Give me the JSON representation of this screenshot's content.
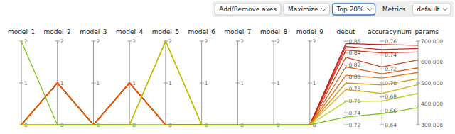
{
  "chart_data": {
    "type": "parallel",
    "annotations": [
      "Add/Remove axes",
      "Maximize",
      "Top 20%",
      "Metrics",
      "default"
    ],
    "axes": [
      {
        "label": "model_1",
        "range": [
          0,
          2
        ],
        "ticks": [
          0,
          1,
          2
        ]
      },
      {
        "label": "model_2",
        "range": [
          0,
          2
        ],
        "ticks": [
          0,
          1,
          2
        ]
      },
      {
        "label": "model_3",
        "range": [
          0,
          2
        ],
        "ticks": [
          0,
          1,
          2
        ]
      },
      {
        "label": "model_4",
        "range": [
          0,
          2
        ],
        "ticks": [
          0,
          1,
          2
        ]
      },
      {
        "label": "model_5",
        "range": [
          0,
          2
        ],
        "ticks": [
          0,
          1,
          2
        ]
      },
      {
        "label": "model_6",
        "range": [
          0,
          2
        ],
        "ticks": [
          0,
          1,
          2
        ]
      },
      {
        "label": "model_7",
        "range": [
          0,
          2
        ],
        "ticks": [
          0,
          1,
          2
        ]
      },
      {
        "label": "model_8",
        "range": [
          0,
          2
        ],
        "ticks": [
          0,
          1,
          2
        ]
      },
      {
        "label": "model_9",
        "range": [
          0,
          2
        ],
        "ticks": [
          0,
          1,
          2
        ]
      },
      {
        "label": "debut",
        "range": [
          0.72,
          0.86
        ],
        "ticks": [
          0.72,
          0.74,
          0.76,
          0.78,
          {
            "value": 0.8,
            "label": "0.80"
          },
          0.82,
          0.84,
          0.86
        ]
      },
      {
        "label": "accuracy",
        "range": [
          0.64,
          0.76
        ],
        "ticks": [
          0.64,
          0.66,
          0.68,
          {
            "value": 0.7,
            "label": "0.70"
          },
          0.72,
          0.74,
          0.76
        ]
      },
      {
        "label": "num_params",
        "range": [
          300000,
          700000
        ],
        "ticks": [
          {
            "value": 300000,
            "label": "300,000"
          },
          {
            "value": 400000,
            "label": "400,000"
          },
          {
            "value": 500000,
            "label": "500,000"
          },
          {
            "value": 600000,
            "label": "600,000"
          },
          {
            "value": 700000,
            "label": "700,000"
          }
        ]
      }
    ],
    "series": [
      {
        "color": "#bb0000",
        "values": [
          0,
          1,
          0,
          1,
          0,
          0,
          0,
          0,
          0,
          0.856,
          0.755,
          680000
        ]
      },
      {
        "color": "#cc1100",
        "values": [
          0,
          1,
          0,
          1,
          0,
          0,
          0,
          0,
          0,
          0.851,
          0.748,
          665000
        ]
      },
      {
        "color": "#cc2200",
        "values": [
          0,
          1,
          0,
          1,
          0,
          0,
          0,
          0,
          0,
          0.845,
          0.743,
          648000
        ]
      },
      {
        "color": "#cc3300",
        "values": [
          0,
          1,
          0,
          1,
          0,
          0,
          0,
          0,
          0,
          0.833,
          0.723,
          610000
        ]
      },
      {
        "color": "#dd5500",
        "values": [
          0,
          1,
          0,
          1,
          0,
          0,
          0,
          0,
          0,
          0.817,
          0.713,
          572000
        ]
      },
      {
        "color": "#e06500",
        "values": [
          0,
          1,
          0,
          1,
          0,
          0,
          0,
          0,
          0,
          0.803,
          0.707,
          550000
        ]
      },
      {
        "color": "#cc8800",
        "values": [
          0,
          0,
          0,
          0,
          2,
          0,
          0,
          0,
          0,
          0.79,
          0.697,
          520000
        ]
      },
      {
        "color": "#d9a800",
        "values": [
          0,
          0,
          0,
          0,
          2,
          0,
          0,
          0,
          0,
          0.779,
          0.685,
          492000
        ]
      },
      {
        "color": "#b8c800",
        "values": [
          0,
          0,
          0,
          0,
          2,
          0,
          0,
          0,
          0,
          0.759,
          0.674,
          450000
        ]
      },
      {
        "color": "#70c000",
        "values": [
          2,
          0,
          0,
          0,
          0,
          0,
          0,
          0,
          0,
          0.733,
          0.656,
          382000
        ]
      }
    ]
  }
}
